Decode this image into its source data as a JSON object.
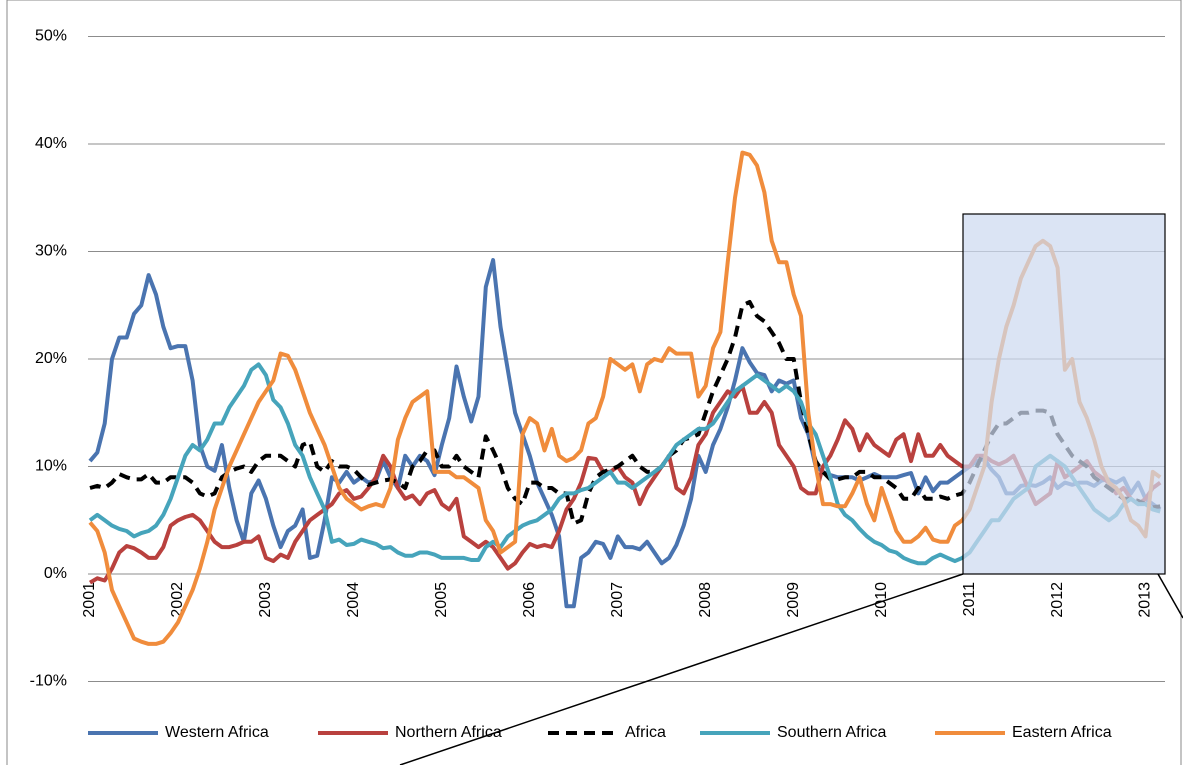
{
  "chart_data": {
    "type": "line",
    "categories": [
      "2001",
      null,
      null,
      null,
      null,
      null,
      null,
      null,
      null,
      null,
      null,
      null,
      "2002",
      null,
      null,
      null,
      null,
      null,
      null,
      null,
      null,
      null,
      null,
      null,
      "2003",
      null,
      null,
      null,
      null,
      null,
      null,
      null,
      null,
      null,
      null,
      null,
      "2004",
      null,
      null,
      null,
      null,
      null,
      null,
      null,
      null,
      null,
      null,
      null,
      "2005",
      null,
      null,
      null,
      null,
      null,
      null,
      null,
      null,
      null,
      null,
      null,
      "2006",
      null,
      null,
      null,
      null,
      null,
      null,
      null,
      null,
      null,
      null,
      null,
      "2007",
      null,
      null,
      null,
      null,
      null,
      null,
      null,
      null,
      null,
      null,
      null,
      "2008",
      null,
      null,
      null,
      null,
      null,
      null,
      null,
      null,
      null,
      null,
      null,
      "2009",
      null,
      null,
      null,
      null,
      null,
      null,
      null,
      null,
      null,
      null,
      null,
      "2010",
      null,
      null,
      null,
      null,
      null,
      null,
      null,
      null,
      null,
      null,
      null,
      "2011",
      null,
      null,
      null,
      null,
      null,
      null,
      null,
      null,
      null,
      null,
      null,
      "2012",
      null,
      null,
      null,
      null,
      null,
      null,
      null,
      null,
      null,
      null,
      null,
      "2013",
      null,
      null
    ],
    "series": [
      {
        "name": "Western Africa",
        "color": "#4a74b0",
        "values": [
          10.5,
          11.3,
          14,
          20,
          22,
          22,
          24.2,
          25,
          27.8,
          26,
          23,
          21,
          21.2,
          21.2,
          18,
          12,
          10,
          9.6,
          12,
          8,
          5,
          3,
          7.5,
          8.7,
          7,
          4.5,
          2.5,
          4,
          4.5,
          6,
          1.5,
          1.7,
          5,
          9,
          8.5,
          9.5,
          8.5,
          9,
          8.5,
          8.7,
          10.5,
          9,
          8,
          11,
          10,
          11,
          10.5,
          9.2,
          12,
          14.5,
          19.3,
          16.5,
          14.2,
          16.5,
          26.7,
          29.2,
          23,
          19,
          15,
          13,
          11,
          8.5,
          7,
          5.5,
          3.5,
          -3,
          -3,
          1.5,
          2,
          3,
          2.8,
          1.5,
          3.5,
          2.5,
          2.5,
          2.3,
          3,
          2,
          1,
          1.5,
          2.7,
          4.5,
          7,
          11,
          9.5,
          12,
          13.5,
          15.5,
          18,
          21,
          19.7,
          18.7,
          18.5,
          17,
          18,
          17.7,
          18,
          14.5,
          13,
          10,
          9.5,
          9.2,
          9,
          9,
          9,
          8.7,
          9,
          9.3,
          9,
          9,
          9,
          9.2,
          9.4,
          7.5,
          9,
          7.7,
          8.5,
          8.5,
          9,
          9.5,
          10,
          10.5,
          10.7,
          9.7,
          9,
          7.5,
          7.5,
          8.2,
          8.3,
          8.2,
          8.5,
          9,
          8,
          8.5,
          8.3,
          8.5,
          8.5,
          8.2,
          8.7,
          8.8,
          8.5,
          8.9,
          7.5,
          8.5,
          7,
          6.5,
          6
        ]
      },
      {
        "name": "Northern Africa",
        "color": "#b9413e",
        "values": [
          -0.8,
          -0.4,
          -0.6,
          0.5,
          2,
          2.6,
          2.4,
          2,
          1.5,
          1.5,
          2.5,
          4.5,
          5,
          5.3,
          5.5,
          5,
          4,
          3,
          2.5,
          2.5,
          2.7,
          3,
          3,
          3.5,
          1.5,
          1.2,
          1.8,
          1.5,
          3,
          4,
          5,
          5.5,
          6,
          6.5,
          7.5,
          7.8,
          7,
          7.2,
          8,
          9,
          11,
          10,
          8,
          7,
          7.3,
          6.5,
          7.5,
          7.8,
          6.5,
          6,
          7,
          3.5,
          3,
          2.5,
          3,
          2.5,
          1.5,
          0.5,
          1,
          2,
          2.8,
          2.5,
          2.7,
          2.5,
          4,
          6,
          7,
          8.5,
          10.8,
          10.7,
          9.5,
          9.5,
          10,
          9,
          8.5,
          6.5,
          8,
          9,
          10,
          11,
          8,
          7.5,
          9,
          12,
          13,
          15,
          16,
          17,
          16.5,
          17.5,
          15,
          15,
          16,
          15,
          12,
          11,
          10,
          8,
          7.5,
          7.5,
          10,
          11,
          12.5,
          14.3,
          13.5,
          11.5,
          13,
          12,
          11.5,
          11,
          12.5,
          13,
          10.5,
          13,
          11,
          11,
          12,
          11,
          10.5,
          10,
          10,
          11,
          11,
          10.5,
          10.2,
          10.5,
          11,
          9.5,
          8,
          6.5,
          7,
          7.5,
          10.5,
          9,
          9.5,
          10,
          10.5,
          9.5,
          9,
          8.5,
          7.5,
          8,
          7,
          6.5,
          7,
          8,
          8.5
        ]
      },
      {
        "name": "Africa",
        "color": "#000000",
        "dash": true,
        "values": [
          8,
          8.2,
          8,
          8.5,
          9.3,
          9,
          8.8,
          8.8,
          9.3,
          8.5,
          8.5,
          9,
          9,
          9,
          8.5,
          7.5,
          7.2,
          7.5,
          9,
          9.5,
          9.8,
          10,
          9.5,
          10.5,
          11,
          11,
          11,
          10.5,
          10,
          12,
          12.3,
          10,
          9.5,
          10.5,
          10,
          10,
          9.7,
          9,
          8.3,
          8.5,
          8.7,
          8.8,
          8.5,
          8,
          10,
          10.5,
          11.5,
          11.5,
          10,
          10,
          11,
          10,
          9.5,
          9,
          12.8,
          11.5,
          10,
          8,
          7,
          6.5,
          8.5,
          8.5,
          8,
          8,
          7.5,
          7.5,
          4.7,
          5,
          7.5,
          9,
          9.5,
          9.7,
          10,
          10.5,
          11,
          10,
          9.5,
          9.5,
          10,
          11,
          11.5,
          12.5,
          12.7,
          13,
          15,
          17,
          18.5,
          20,
          22,
          25,
          25.3,
          24,
          23.5,
          22.5,
          21.5,
          20,
          20,
          16,
          13,
          10.5,
          9.5,
          8.8,
          8.8,
          9,
          9,
          9.5,
          9.5,
          9,
          9,
          8.5,
          8,
          7,
          7,
          8,
          7,
          7,
          7.2,
          7,
          7.3,
          7.5,
          8.5,
          10,
          11.5,
          13,
          14,
          14,
          14.5,
          15,
          15,
          15.2,
          15.2,
          15,
          13,
          12,
          11,
          10.5,
          10,
          9,
          8.5,
          8,
          7.5,
          7,
          7,
          6.8,
          6.5,
          6.2,
          6.3
        ]
      },
      {
        "name": "Southern Africa",
        "color": "#46a4bb",
        "values": [
          5,
          5.5,
          5,
          4.5,
          4.2,
          4,
          3.5,
          3.8,
          4,
          4.5,
          5.5,
          7,
          9,
          11,
          12,
          11.5,
          12.5,
          14,
          14,
          15.5,
          16.5,
          17.5,
          19,
          19.5,
          18.5,
          16.2,
          15.5,
          14,
          12,
          11,
          9,
          7.5,
          6,
          3,
          3.2,
          2.7,
          2.8,
          3.2,
          3,
          2.8,
          2.4,
          2.5,
          2,
          1.7,
          1.7,
          2,
          2,
          1.8,
          1.5,
          1.5,
          1.5,
          1.5,
          1.3,
          1.3,
          2.5,
          3,
          2.5,
          3.5,
          4,
          4.5,
          4.8,
          5,
          5.5,
          6,
          7,
          7.5,
          7.5,
          7.8,
          8,
          8.5,
          9,
          9.5,
          8.5,
          8.5,
          8,
          8.5,
          9,
          9.5,
          10,
          11,
          12,
          12.5,
          13,
          13.5,
          13.5,
          14,
          15,
          16,
          17,
          17.5,
          18,
          18.5,
          18,
          17.5,
          17,
          17.5,
          17,
          16,
          14,
          13,
          11,
          9,
          6.5,
          5.5,
          5,
          4.2,
          3.5,
          3,
          2.7,
          2.2,
          2,
          1.5,
          1.2,
          1,
          1,
          1.5,
          1.8,
          1.5,
          1.2,
          1.5,
          2,
          3,
          4,
          5,
          5,
          6,
          7,
          7.5,
          8,
          10,
          10.5,
          11,
          10.5,
          10,
          9,
          8,
          7,
          6,
          5.5,
          5,
          5.5,
          6.5,
          7,
          6.5,
          6.5,
          6,
          5.8
        ]
      },
      {
        "name": "Eastern Africa",
        "color": "#f08c3c",
        "values": [
          4.8,
          4,
          2,
          -1.5,
          -3,
          -4.5,
          -6,
          -6.3,
          -6.5,
          -6.5,
          -6.3,
          -5.5,
          -4.5,
          -3,
          -1.5,
          0.5,
          3,
          6,
          8,
          10,
          11.5,
          13,
          14.5,
          16,
          17,
          18,
          20.5,
          20.3,
          19,
          17,
          15,
          13.5,
          12,
          10,
          8,
          7,
          6.5,
          6,
          6.3,
          6.5,
          6.3,
          8,
          12.5,
          14.5,
          16,
          16.5,
          17,
          9.5,
          9.5,
          9.5,
          9,
          9,
          8.5,
          8,
          5,
          4,
          2,
          2.5,
          3,
          13,
          14.5,
          14,
          11.5,
          13.5,
          11,
          10.5,
          10.8,
          11.5,
          14,
          14.5,
          16.5,
          20,
          19.5,
          19,
          19.5,
          17,
          19.5,
          20,
          19.8,
          21,
          20.5,
          20.5,
          20.5,
          16.5,
          17.5,
          21,
          22.5,
          29,
          35,
          39.2,
          39,
          38,
          35.5,
          31,
          29,
          29,
          26,
          24,
          15,
          10,
          6.5,
          6.5,
          6.3,
          6.3,
          7.5,
          9,
          6.5,
          5,
          8,
          6,
          4,
          3,
          3,
          3.5,
          4.3,
          3.2,
          3,
          3,
          4.5,
          5,
          6,
          8,
          10,
          16,
          20,
          23,
          25,
          27.5,
          29,
          30.5,
          31,
          30.5,
          28.5,
          19,
          20,
          16,
          14.5,
          12.5,
          10,
          8.5,
          8,
          7,
          5,
          4.5,
          3.5,
          9.5,
          9
        ]
      }
    ],
    "ylim": [
      -10,
      50
    ],
    "yticks": [
      {
        "value": -10,
        "label": "-10%"
      },
      {
        "value": 0,
        "label": "0%"
      },
      {
        "value": 10,
        "label": "10%"
      },
      {
        "value": 20,
        "label": "20%"
      },
      {
        "value": 30,
        "label": "30%"
      },
      {
        "value": 40,
        "label": "40%"
      },
      {
        "value": 50,
        "label": "50%"
      }
    ],
    "grid": true,
    "legend": "bottom"
  }
}
